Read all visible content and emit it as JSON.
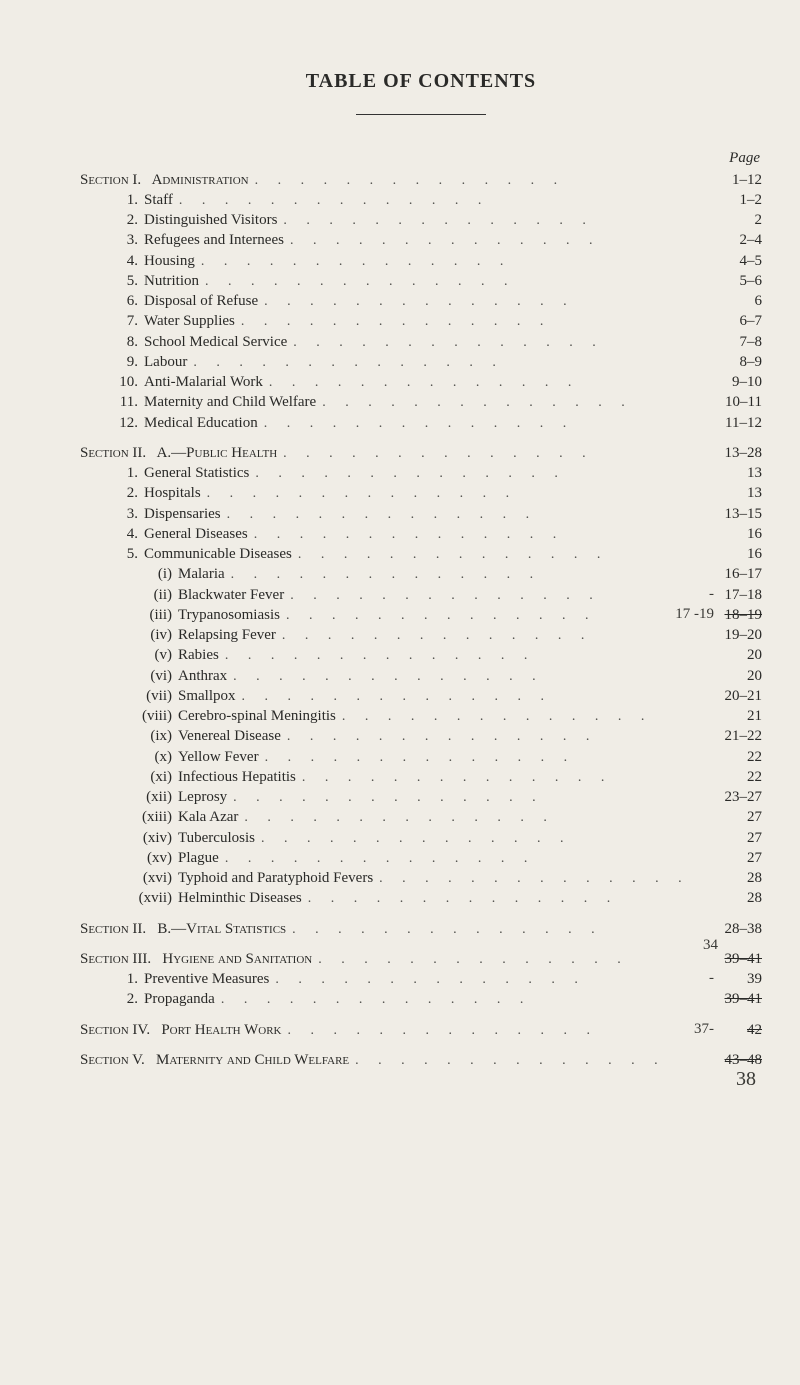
{
  "title": "TABLE OF CONTENTS",
  "pageLabel": "Page",
  "dots": ". .        . .        . .        . .        . .        . .        . .",
  "sections": [
    {
      "heading": {
        "pre": "Section I.   ",
        "caps": "Administration",
        "page": "1–12"
      },
      "items": [
        {
          "num": "1.",
          "label": "Staff",
          "page": "1–2"
        },
        {
          "num": "2.",
          "label": "Distinguished Visitors",
          "page": "2"
        },
        {
          "num": "3.",
          "label": "Refugees and Internees",
          "page": "2–4"
        },
        {
          "num": "4.",
          "label": "Housing",
          "page": "4–5"
        },
        {
          "num": "5.",
          "label": "Nutrition",
          "page": "5–6"
        },
        {
          "num": "6.",
          "label": "Disposal of Refuse",
          "page": "6"
        },
        {
          "num": "7.",
          "label": "Water Supplies",
          "page": "6–7"
        },
        {
          "num": "8.",
          "label": "School Medical Service",
          "page": "7–8"
        },
        {
          "num": "9.",
          "label": "Labour",
          "page": "8–9"
        },
        {
          "num": "10.",
          "label": "Anti-Malarial Work",
          "page": "9–10"
        },
        {
          "num": "11.",
          "label": "Maternity and Child Welfare",
          "page": "10–11"
        },
        {
          "num": "12.",
          "label": "Medical Education",
          "page": "11–12"
        }
      ]
    },
    {
      "heading": {
        "pre": "Section II.   A.—",
        "caps": "Public Health",
        "page": "13–28"
      },
      "items": [
        {
          "num": "1.",
          "label": "General Statistics",
          "page": "13"
        },
        {
          "num": "2.",
          "label": "Hospitals",
          "page": "13"
        },
        {
          "num": "3.",
          "label": "Dispensaries",
          "page": "13–15"
        },
        {
          "num": "4.",
          "label": "General Diseases",
          "page": "16"
        },
        {
          "num": "5.",
          "label": "Communicable Diseases",
          "page": "16"
        }
      ],
      "subitems": [
        {
          "num": "(i)",
          "label": "Malaria",
          "page": "16–17"
        },
        {
          "num": "(ii)",
          "label": "Blackwater Fever",
          "page": "17–18",
          "hand_left": "-"
        },
        {
          "num": "(iii)",
          "label": "Trypanosomiasis",
          "page": "18–19",
          "strike": true,
          "hand_left": "17 -19"
        },
        {
          "num": "(iv)",
          "label": "Relapsing Fever",
          "page": "19–20"
        },
        {
          "num": "(v)",
          "label": "Rabies",
          "page": "20"
        },
        {
          "num": "(vi)",
          "label": "Anthrax",
          "page": "20"
        },
        {
          "num": "(vii)",
          "label": "Smallpox",
          "page": "20–21"
        },
        {
          "num": "(viii)",
          "label": "Cerebro-spinal Meningitis",
          "page": "21"
        },
        {
          "num": "(ix)",
          "label": "Venereal Disease",
          "page": "21–22"
        },
        {
          "num": "(x)",
          "label": "Yellow Fever",
          "page": "22"
        },
        {
          "num": "(xi)",
          "label": "Infectious Hepatitis",
          "page": "22"
        },
        {
          "num": "(xii)",
          "label": "Leprosy",
          "page": "23–27"
        },
        {
          "num": "(xiii)",
          "label": "Kala Azar",
          "page": "27"
        },
        {
          "num": "(xiv)",
          "label": "Tuberculosis",
          "page": "27"
        },
        {
          "num": "(xv)",
          "label": "Plague",
          "page": "27"
        },
        {
          "num": "(xvi)",
          "label": "Typhoid and Paratyphoid Fevers",
          "page": "28"
        },
        {
          "num": "(xvii)",
          "label": "Helminthic Diseases",
          "page": "28"
        }
      ]
    },
    {
      "heading": {
        "pre": "Section II.   B.—",
        "caps": "Vital Statistics",
        "page": "28–38"
      },
      "items": []
    },
    {
      "heading": {
        "pre": "Section III.   ",
        "caps": "Hygiene and Sanitation",
        "page": "39–41",
        "strike": true,
        "hand_above": "34"
      },
      "items": [
        {
          "num": "1.",
          "label": "Preventive Measures",
          "page": "39",
          "hand_left": "-"
        },
        {
          "num": "2.",
          "label": "Propaganda",
          "page": "39–41",
          "strike": true
        }
      ]
    },
    {
      "heading": {
        "pre": "Section IV.   ",
        "caps": "Port Health Work",
        "page": "42",
        "strike": true,
        "hand_left": "37-"
      },
      "items": []
    },
    {
      "heading": {
        "pre": "Section V.   ",
        "caps": "Maternity and Child Welfare",
        "page": "43–48",
        "strike": true,
        "hand_below": "38"
      },
      "items": []
    }
  ]
}
